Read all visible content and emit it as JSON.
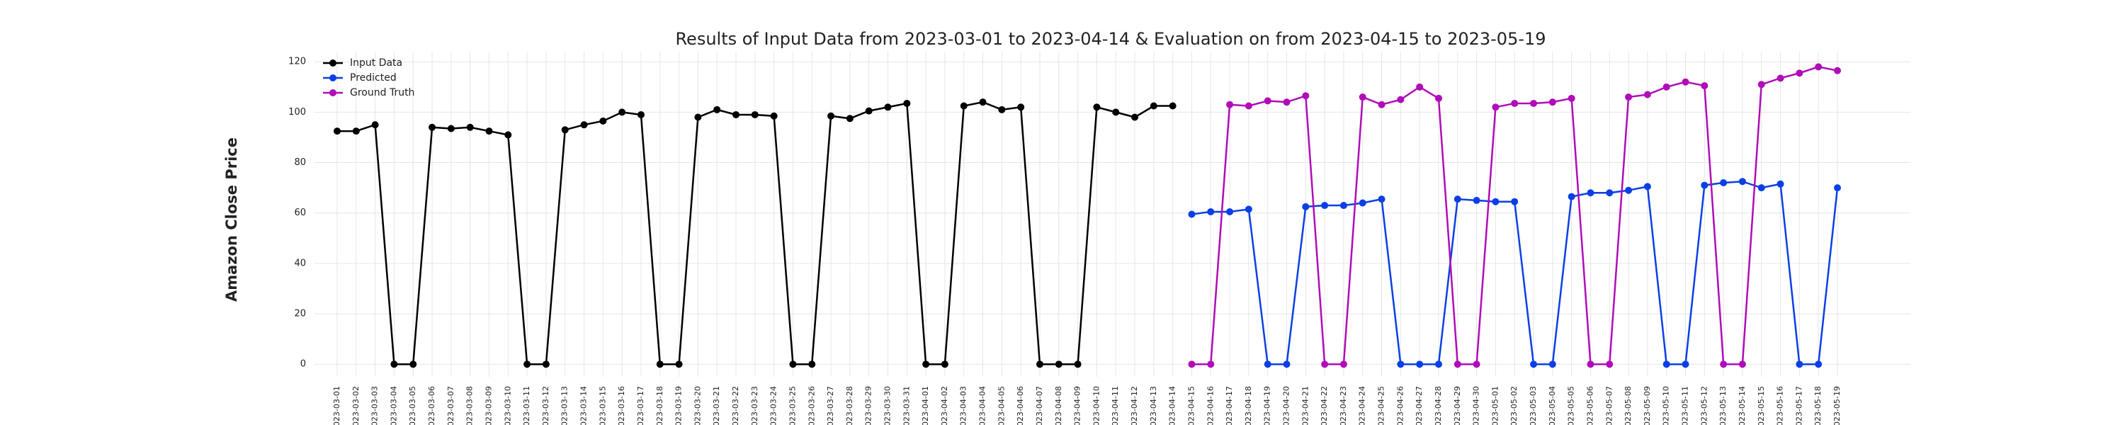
{
  "chart_data": {
    "type": "line",
    "title": "Results of Input Data from 2023-03-01 to 2023-04-14 & Evaluation on from 2023-04-15 to 2023-05-19",
    "ylabel": "Amazon Close Price",
    "categories": [
      "2023-03-01",
      "2023-03-02",
      "2023-03-03",
      "2023-03-04",
      "2023-03-05",
      "2023-03-06",
      "2023-03-07",
      "2023-03-08",
      "2023-03-09",
      "2023-03-10",
      "2023-03-11",
      "2023-03-12",
      "2023-03-13",
      "2023-03-14",
      "2023-03-15",
      "2023-03-16",
      "2023-03-17",
      "2023-03-18",
      "2023-03-19",
      "2023-03-20",
      "2023-03-21",
      "2023-03-22",
      "2023-03-23",
      "2023-03-24",
      "2023-03-25",
      "2023-03-26",
      "2023-03-27",
      "2023-03-28",
      "2023-03-29",
      "2023-03-30",
      "2023-03-31",
      "2023-04-01",
      "2023-04-02",
      "2023-04-03",
      "2023-04-04",
      "2023-04-05",
      "2023-04-06",
      "2023-04-07",
      "2023-04-08",
      "2023-04-09",
      "2023-04-10",
      "2023-04-11",
      "2023-04-12",
      "2023-04-13",
      "2023-04-14",
      "2023-04-15",
      "2023-04-16",
      "2023-04-17",
      "2023-04-18",
      "2023-04-19",
      "2023-04-20",
      "2023-04-21",
      "2023-04-22",
      "2023-04-23",
      "2023-04-24",
      "2023-04-25",
      "2023-04-26",
      "2023-04-27",
      "2023-04-28",
      "2023-04-29",
      "2023-04-30",
      "2023-05-01",
      "2023-05-02",
      "2023-05-03",
      "2023-05-04",
      "2023-05-05",
      "2023-05-06",
      "2023-05-07",
      "2023-05-08",
      "2023-05-09",
      "2023-05-10",
      "2023-05-11",
      "2023-05-12",
      "2023-05-13",
      "2023-05-14",
      "2023-05-15",
      "2023-05-16",
      "2023-05-17",
      "2023-05-18",
      "2023-05-19"
    ],
    "series": [
      {
        "name": "Input Data",
        "color": "#000000",
        "values": [
          92.5,
          92.5,
          95,
          0,
          0,
          94,
          93.5,
          94,
          92.5,
          91,
          0,
          0,
          93,
          95,
          96.5,
          100,
          99,
          0,
          0,
          98,
          101,
          99,
          99,
          98.5,
          0,
          0,
          98.5,
          97.5,
          100.5,
          102,
          103.5,
          0,
          0,
          102.5,
          104,
          101,
          102,
          0,
          0,
          0,
          102,
          100,
          98,
          102.5,
          102.5,
          null,
          null,
          null,
          null,
          null,
          null,
          null,
          null,
          null,
          null,
          null,
          null,
          null,
          null,
          null,
          null,
          null,
          null,
          null,
          null,
          null,
          null,
          null,
          null,
          null,
          null,
          null,
          null,
          null,
          null,
          null,
          null,
          null,
          null,
          null
        ]
      },
      {
        "name": "Predicted",
        "color": "#0a3fe6",
        "values": [
          null,
          null,
          null,
          null,
          null,
          null,
          null,
          null,
          null,
          null,
          null,
          null,
          null,
          null,
          null,
          null,
          null,
          null,
          null,
          null,
          null,
          null,
          null,
          null,
          null,
          null,
          null,
          null,
          null,
          null,
          null,
          null,
          null,
          null,
          null,
          null,
          null,
          null,
          null,
          null,
          null,
          null,
          null,
          null,
          null,
          59.5,
          60.5,
          60.5,
          61.5,
          0,
          0,
          62.5,
          63,
          63,
          64,
          65.5,
          0,
          0,
          0,
          65.5,
          65,
          64.5,
          64.5,
          0,
          0,
          66.5,
          68,
          68,
          69,
          70.5,
          0,
          0,
          71,
          72,
          72.5,
          70,
          71.5,
          0,
          0,
          70
        ]
      },
      {
        "name": "Ground Truth",
        "color": "#b00cb8",
        "values": [
          null,
          null,
          null,
          null,
          null,
          null,
          null,
          null,
          null,
          null,
          null,
          null,
          null,
          null,
          null,
          null,
          null,
          null,
          null,
          null,
          null,
          null,
          null,
          null,
          null,
          null,
          null,
          null,
          null,
          null,
          null,
          null,
          null,
          null,
          null,
          null,
          null,
          null,
          null,
          null,
          null,
          null,
          null,
          null,
          null,
          0,
          0,
          103,
          102.5,
          104.5,
          104,
          106.5,
          0,
          0,
          106,
          103,
          105,
          110,
          105.5,
          0,
          0,
          102,
          103.5,
          103.5,
          104,
          105.5,
          0,
          0,
          106,
          107,
          110,
          112,
          110.5,
          0,
          0,
          111,
          113.5,
          115.5,
          118,
          116.5
        ]
      }
    ],
    "ylim": [
      -5,
      124
    ],
    "yticks": [
      0,
      20,
      40,
      60,
      80,
      100,
      120
    ],
    "grid": true,
    "legend": "upper left"
  }
}
